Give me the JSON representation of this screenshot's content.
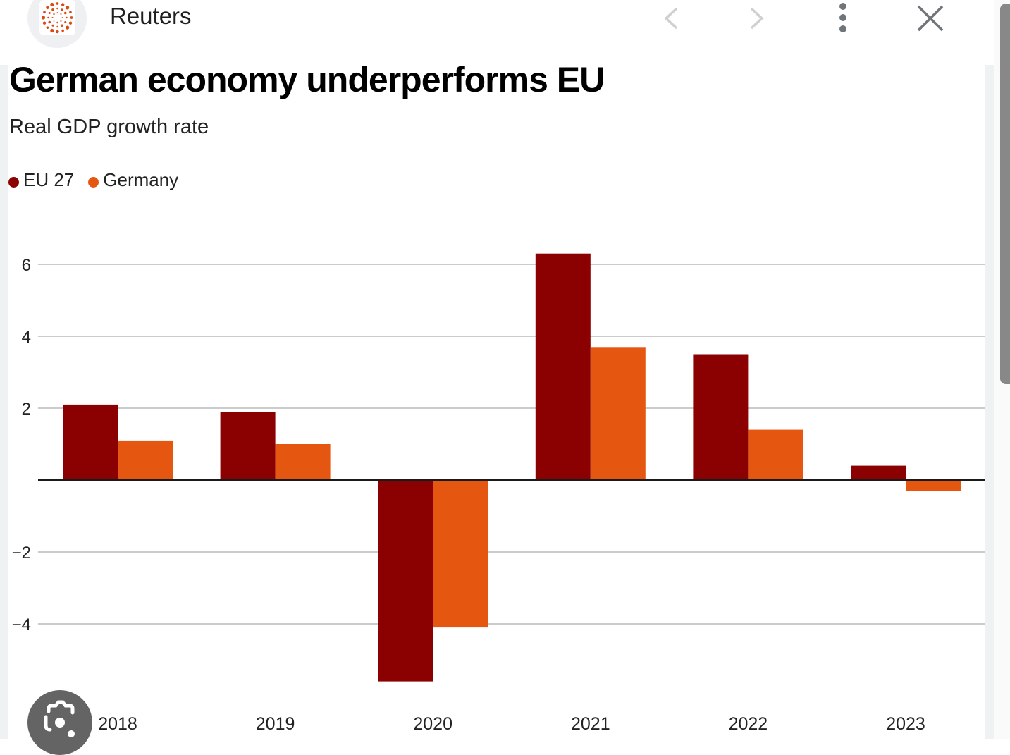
{
  "header": {
    "site_name": "Reuters",
    "icons": {
      "logo": "reuters-dot-ring-logo",
      "back": "chevron-left-icon",
      "forward": "chevron-right-icon",
      "menu": "more-vertical-icon",
      "close": "close-icon"
    }
  },
  "colors": {
    "eu27": "#8b0000",
    "germany": "#e55611",
    "gridline": "#cccccc",
    "zero_line": "#1a1a1a",
    "text": "#222222"
  },
  "lens_button": {
    "icon": "google-lens-icon"
  },
  "chart_data": {
    "type": "bar",
    "title": "German economy underperforms EU",
    "subtitle": "Real GDP growth rate",
    "xlabel": "",
    "ylabel": "",
    "categories": [
      "2018",
      "2019",
      "2020",
      "2021",
      "2022",
      "2023"
    ],
    "series": [
      {
        "name": "EU 27",
        "color": "#8b0000",
        "values": [
          2.1,
          1.9,
          -5.6,
          6.3,
          3.5,
          0.4
        ]
      },
      {
        "name": "Germany",
        "color": "#e55611",
        "values": [
          1.1,
          1.0,
          -4.1,
          3.7,
          1.4,
          -0.3
        ]
      }
    ],
    "yticks": [
      6,
      4,
      2,
      -2,
      -4
    ],
    "ytick_labels": [
      "6",
      "4",
      "2",
      "−2",
      "−4"
    ],
    "ylim": [
      -6.5,
      7.2
    ],
    "grid": true,
    "legend": "top-left"
  }
}
